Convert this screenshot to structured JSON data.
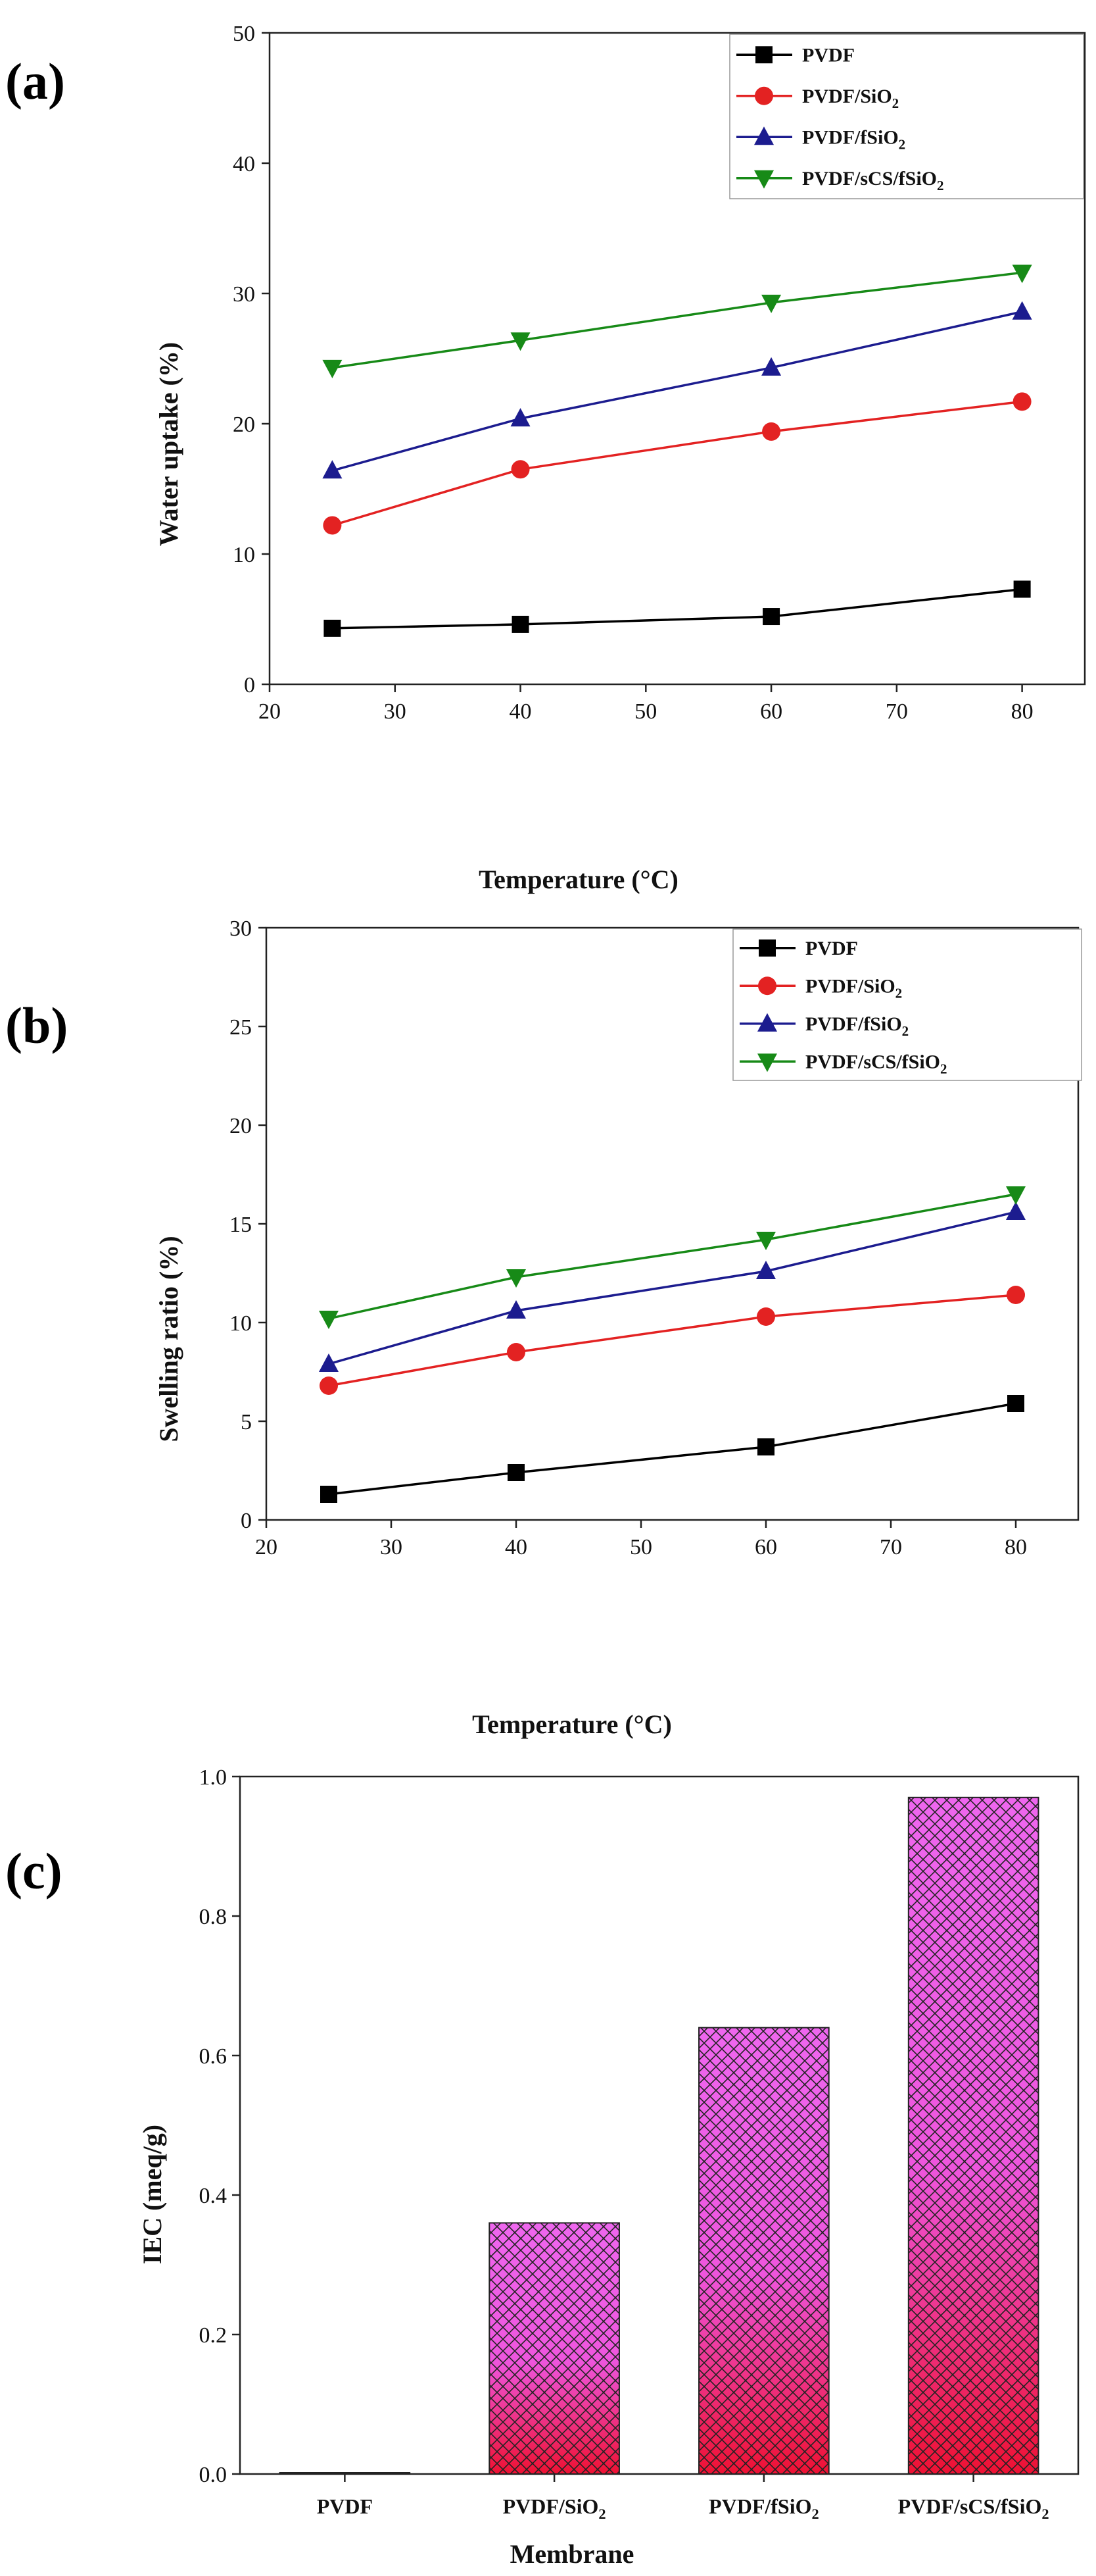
{
  "chart_data": [
    {
      "type": "line",
      "panel_label": "(a)",
      "title": "",
      "xlabel": "Temperature (°C)",
      "ylabel": "Water uptake (%)",
      "xlim": [
        20,
        85
      ],
      "ylim": [
        0,
        50
      ],
      "xticks": [
        20,
        30,
        40,
        50,
        60,
        70,
        80
      ],
      "yticks": [
        0,
        10,
        20,
        30,
        40,
        50
      ],
      "grid": false,
      "legend_position": "top-right",
      "x": [
        25,
        40,
        60,
        80
      ],
      "series": [
        {
          "name": "PVDF",
          "label_main": "PVDF",
          "label_sub": "",
          "label_tail": "",
          "color": "#000000",
          "marker": "square",
          "values": [
            4.3,
            4.6,
            5.2,
            7.3
          ]
        },
        {
          "name": "PVDF/SiO2",
          "label_main": "PVDF/SiO",
          "label_sub": "2",
          "label_tail": "",
          "color": "#e32222",
          "marker": "circle",
          "values": [
            12.2,
            16.5,
            19.4,
            21.7
          ]
        },
        {
          "name": "PVDF/fSiO2",
          "label_main": "PVDF/fSiO",
          "label_sub": "2",
          "label_tail": "",
          "color": "#1c1c8f",
          "marker": "triangle-up",
          "values": [
            16.4,
            20.4,
            24.3,
            28.6
          ]
        },
        {
          "name": "PVDF/sCS/fSiO2",
          "label_main": "PVDF/sCS/fSiO",
          "label_sub": "2",
          "label_tail": "",
          "color": "#178a17",
          "marker": "triangle-down",
          "values": [
            24.3,
            26.4,
            29.3,
            31.6
          ]
        }
      ]
    },
    {
      "type": "line",
      "panel_label": "(b)",
      "title": "",
      "xlabel": "Temperature (°C)",
      "ylabel": "Swelling ratio (%)",
      "xlim": [
        20,
        85
      ],
      "ylim": [
        0,
        30
      ],
      "xticks": [
        20,
        30,
        40,
        50,
        60,
        70,
        80
      ],
      "yticks": [
        0,
        5,
        10,
        15,
        20,
        25,
        30
      ],
      "grid": false,
      "legend_position": "top-right",
      "x": [
        25,
        40,
        60,
        80
      ],
      "series": [
        {
          "name": "PVDF",
          "label_main": "PVDF",
          "label_sub": "",
          "label_tail": "",
          "color": "#000000",
          "marker": "square",
          "values": [
            1.3,
            2.4,
            3.7,
            5.9
          ]
        },
        {
          "name": "PVDF/SiO2",
          "label_main": "PVDF/SiO",
          "label_sub": "2",
          "label_tail": "",
          "color": "#e32222",
          "marker": "circle",
          "values": [
            6.8,
            8.5,
            10.3,
            11.4
          ]
        },
        {
          "name": "PVDF/fSiO2",
          "label_main": "PVDF/fSiO",
          "label_sub": "2",
          "label_tail": "",
          "color": "#1c1c8f",
          "marker": "triangle-up",
          "values": [
            7.9,
            10.6,
            12.6,
            15.6
          ]
        },
        {
          "name": "PVDF/sCS/fSiO2",
          "label_main": "PVDF/sCS/fSiO",
          "label_sub": "2",
          "label_tail": "",
          "color": "#178a17",
          "marker": "triangle-down",
          "values": [
            10.2,
            12.3,
            14.2,
            16.5
          ]
        }
      ]
    },
    {
      "type": "bar",
      "panel_label": "(c)",
      "title": "",
      "xlabel": "Membrane",
      "ylabel": "IEC (meq/g)",
      "ylim": [
        0,
        1.0
      ],
      "yticks": [
        "0.0",
        "0.2",
        "0.4",
        "0.6",
        "0.8",
        "1.0"
      ],
      "grid": false,
      "categories": [
        {
          "name": "PVDF",
          "label_main": "PVDF",
          "label_sub": ""
        },
        {
          "name": "PVDF/SiO2",
          "label_main": "PVDF/SiO",
          "label_sub": "2"
        },
        {
          "name": "PVDF/fSiO2",
          "label_main": "PVDF/fSiO",
          "label_sub": "2"
        },
        {
          "name": "PVDF/sCS/fSiO2",
          "label_main": "PVDF/sCS/fSiO",
          "label_sub": "2"
        }
      ],
      "values": [
        0.0,
        0.36,
        0.64,
        0.97
      ],
      "bar_top_color": "#ee66ee",
      "bar_bottom_color": "#ee1133",
      "hatch_color": "#222222"
    }
  ]
}
